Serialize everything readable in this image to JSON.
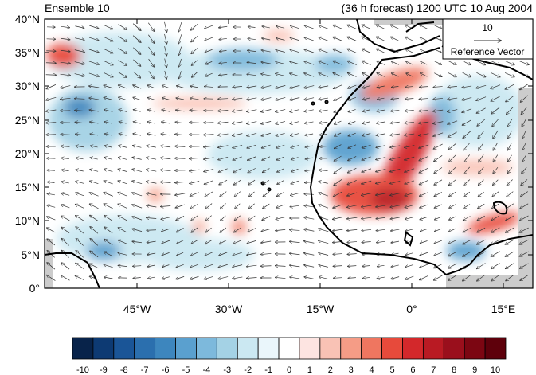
{
  "title_left": "Ensemble 10",
  "title_right": "(36 h forecast) 1200 UTC 10 Aug 2004",
  "map": {
    "lat_labels": [
      "40°N",
      "35°N",
      "30°N",
      "25°N",
      "20°N",
      "15°N",
      "10°N",
      "5°N",
      "0°"
    ],
    "lon_labels": [
      "45°W",
      "30°W",
      "15°W",
      "0°",
      "15°E"
    ],
    "reference_vector": {
      "magnitude": "10",
      "label": "Reference Vector"
    }
  },
  "colorbar": {
    "labels": [
      "-10",
      "-9",
      "-8",
      "-7",
      "-6",
      "-5",
      "-4",
      "-3",
      "-2",
      "-1",
      "0",
      "1",
      "2",
      "3",
      "4",
      "5",
      "6",
      "7",
      "8",
      "9",
      "10"
    ],
    "colors": [
      "#08234a",
      "#0d3a73",
      "#1a5597",
      "#2b6fae",
      "#3d86be",
      "#5aa0cf",
      "#7db9dc",
      "#a4d2e5",
      "#cbe8f2",
      "#eaf6fb",
      "#ffffff",
      "#fde4e1",
      "#f9c2b5",
      "#f59c86",
      "#ef7660",
      "#e74a3b",
      "#d3282b",
      "#b91a23",
      "#9a0f1c",
      "#7c0612",
      "#5e000b"
    ]
  },
  "chart_data": {
    "type": "map",
    "region": {
      "lon_range": [
        "60°W",
        "20°E"
      ],
      "lat_range": [
        "0°",
        "40°N"
      ]
    },
    "field": "shaded anomaly with wind vectors",
    "color_levels": [
      -10,
      -9,
      -8,
      -7,
      -6,
      -5,
      -4,
      -3,
      -2,
      -1,
      0,
      1,
      2,
      3,
      4,
      5,
      6,
      7,
      8,
      9,
      10
    ]
  }
}
